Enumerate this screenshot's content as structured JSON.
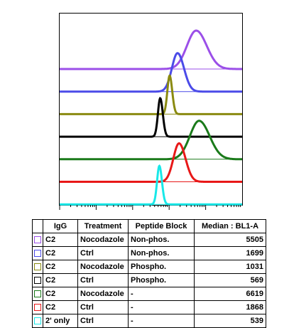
{
  "chart_data": {
    "type": "line",
    "title": "",
    "xlabel": "",
    "ylabel": "",
    "x_scale": "log",
    "xlim": [
      1,
      100000
    ],
    "stacked_offset_histograms": true,
    "grid": false,
    "legend_placement": "below",
    "series": [
      {
        "name": "C2 Nocodazole Non-phos.",
        "color": "#9b4fe8",
        "median": 5505,
        "order": 1
      },
      {
        "name": "C2 Ctrl Non-phos.",
        "color": "#4b4be8",
        "median": 1699,
        "order": 2
      },
      {
        "name": "C2 Nocodazole Phospho.",
        "color": "#8a8a10",
        "median": 1031,
        "order": 3
      },
      {
        "name": "C2 Ctrl Phospho.",
        "color": "#000000",
        "median": 569,
        "order": 4
      },
      {
        "name": "C2 Nocodazole -",
        "color": "#1a7a1a",
        "median": 6619,
        "order": 5
      },
      {
        "name": "C2 Ctrl -",
        "color": "#e81818",
        "median": 1868,
        "order": 6
      },
      {
        "name": "2' only Ctrl -",
        "color": "#18e8e8",
        "median": 539,
        "order": 7
      }
    ]
  },
  "table": {
    "headers": [
      "IgG",
      "Treatment",
      "Peptide Block",
      "Median : BL1-A"
    ],
    "rows": [
      {
        "color": "#9b4fe8",
        "igg": "C2",
        "treatment": "Nocodazole",
        "peptide": "Non-phos.",
        "median": "5505"
      },
      {
        "color": "#4b4be8",
        "igg": "C2",
        "treatment": "Ctrl",
        "peptide": "Non-phos.",
        "median": "1699"
      },
      {
        "color": "#8a8a10",
        "igg": "C2",
        "treatment": "Nocodazole",
        "peptide": "Phospho.",
        "median": "1031"
      },
      {
        "color": "#000000",
        "igg": "C2",
        "treatment": "Ctrl",
        "peptide": "Phospho.",
        "median": "569"
      },
      {
        "color": "#1a7a1a",
        "igg": "C2",
        "treatment": "Nocodazole",
        "peptide": "-",
        "median": "6619"
      },
      {
        "color": "#e81818",
        "igg": "C2",
        "treatment": "Ctrl",
        "peptide": "-",
        "median": "1868"
      },
      {
        "color": "#18e8e8",
        "igg": "2' only",
        "treatment": "Ctrl",
        "peptide": "-",
        "median": "539"
      }
    ]
  }
}
